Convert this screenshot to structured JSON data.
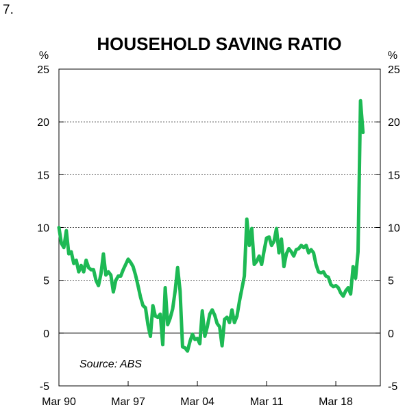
{
  "figure_number": "7.",
  "chart_data": {
    "type": "line",
    "title": "HOUSEHOLD SAVING RATIO",
    "unit_left": "%",
    "unit_right": "%",
    "source": "Source: ABS",
    "xlabel": "",
    "ylabel": "%",
    "ylim": [
      -5,
      25
    ],
    "yticks": [
      25,
      20,
      15,
      10,
      5,
      0,
      -5
    ],
    "y_tick_labels": [
      "25",
      "20",
      "15",
      "10",
      "5",
      "0",
      "-5"
    ],
    "gridlines": [
      20,
      15,
      10,
      5
    ],
    "zero_line": 0,
    "xlim": [
      1990.0,
      2022.5
    ],
    "x_ticks": [
      {
        "label": "Mar 90",
        "value": 1990.0
      },
      {
        "label": "Mar 97",
        "value": 1997.0
      },
      {
        "label": "Mar 04",
        "value": 2004.0
      },
      {
        "label": "Mar 11",
        "value": 2011.0
      },
      {
        "label": "Mar 18",
        "value": 2018.0
      }
    ],
    "line_color": "#1db954",
    "series": [
      {
        "name": "Household saving ratio",
        "points": [
          [
            1990.0,
            10.0
          ],
          [
            1990.25,
            8.5
          ],
          [
            1990.5,
            8.1
          ],
          [
            1990.75,
            9.7
          ],
          [
            1991.0,
            7.5
          ],
          [
            1991.25,
            7.7
          ],
          [
            1991.5,
            6.6
          ],
          [
            1991.75,
            6.9
          ],
          [
            1992.0,
            5.8
          ],
          [
            1992.25,
            6.4
          ],
          [
            1992.5,
            5.8
          ],
          [
            1992.75,
            6.9
          ],
          [
            1993.0,
            6.2
          ],
          [
            1993.25,
            6.0
          ],
          [
            1993.5,
            6.0
          ],
          [
            1993.75,
            5.0
          ],
          [
            1994.0,
            4.5
          ],
          [
            1994.25,
            5.6
          ],
          [
            1994.5,
            7.5
          ],
          [
            1994.75,
            5.5
          ],
          [
            1995.0,
            5.8
          ],
          [
            1995.25,
            5.5
          ],
          [
            1995.5,
            3.9
          ],
          [
            1995.75,
            5.0
          ],
          [
            1996.0,
            5.4
          ],
          [
            1996.25,
            5.4
          ],
          [
            1996.5,
            6.0
          ],
          [
            1996.75,
            6.5
          ],
          [
            1997.0,
            7.0
          ],
          [
            1997.25,
            6.7
          ],
          [
            1997.5,
            6.3
          ],
          [
            1997.75,
            5.5
          ],
          [
            1998.0,
            4.5
          ],
          [
            1998.25,
            3.4
          ],
          [
            1998.5,
            2.6
          ],
          [
            1998.75,
            2.4
          ],
          [
            1999.0,
            0.8
          ],
          [
            1999.25,
            -0.3
          ],
          [
            1999.5,
            2.6
          ],
          [
            1999.75,
            1.6
          ],
          [
            2000.0,
            1.5
          ],
          [
            2000.25,
            1.8
          ],
          [
            2000.5,
            -1.1
          ],
          [
            2000.75,
            4.3
          ],
          [
            2001.0,
            0.8
          ],
          [
            2001.25,
            1.4
          ],
          [
            2001.5,
            2.3
          ],
          [
            2001.75,
            4.0
          ],
          [
            2002.0,
            6.2
          ],
          [
            2002.25,
            4.0
          ],
          [
            2002.5,
            -1.3
          ],
          [
            2002.75,
            -1.4
          ],
          [
            2003.0,
            -1.7
          ],
          [
            2003.25,
            -0.8
          ],
          [
            2003.5,
            -0.1
          ],
          [
            2003.75,
            -0.6
          ],
          [
            2004.0,
            -0.5
          ],
          [
            2004.25,
            -1.0
          ],
          [
            2004.5,
            2.1
          ],
          [
            2004.75,
            -0.3
          ],
          [
            2005.0,
            0.6
          ],
          [
            2005.25,
            1.8
          ],
          [
            2005.5,
            2.2
          ],
          [
            2005.75,
            1.7
          ],
          [
            2006.0,
            0.9
          ],
          [
            2006.25,
            0.6
          ],
          [
            2006.5,
            -1.2
          ],
          [
            2006.75,
            1.3
          ],
          [
            2007.0,
            1.5
          ],
          [
            2007.25,
            1.0
          ],
          [
            2007.5,
            2.2
          ],
          [
            2007.75,
            1.0
          ],
          [
            2008.0,
            1.6
          ],
          [
            2008.25,
            3.0
          ],
          [
            2008.5,
            4.2
          ],
          [
            2008.75,
            5.4
          ],
          [
            2009.0,
            10.8
          ],
          [
            2009.25,
            8.3
          ],
          [
            2009.5,
            9.9
          ],
          [
            2009.75,
            6.5
          ],
          [
            2010.0,
            6.8
          ],
          [
            2010.25,
            7.3
          ],
          [
            2010.5,
            6.5
          ],
          [
            2010.75,
            7.8
          ],
          [
            2011.0,
            9.0
          ],
          [
            2011.25,
            9.1
          ],
          [
            2011.5,
            8.3
          ],
          [
            2011.75,
            8.7
          ],
          [
            2012.0,
            9.9
          ],
          [
            2012.25,
            7.6
          ],
          [
            2012.5,
            8.9
          ],
          [
            2012.75,
            6.3
          ],
          [
            2013.0,
            7.5
          ],
          [
            2013.25,
            8.0
          ],
          [
            2013.5,
            7.7
          ],
          [
            2013.75,
            7.3
          ],
          [
            2014.0,
            7.9
          ],
          [
            2014.25,
            8.0
          ],
          [
            2014.5,
            8.3
          ],
          [
            2014.75,
            8.1
          ],
          [
            2015.0,
            8.3
          ],
          [
            2015.25,
            7.6
          ],
          [
            2015.5,
            7.9
          ],
          [
            2015.75,
            7.6
          ],
          [
            2016.0,
            6.5
          ],
          [
            2016.25,
            5.8
          ],
          [
            2016.5,
            5.7
          ],
          [
            2016.75,
            5.8
          ],
          [
            2017.0,
            5.4
          ],
          [
            2017.25,
            5.3
          ],
          [
            2017.5,
            4.6
          ],
          [
            2017.75,
            4.4
          ],
          [
            2018.0,
            4.5
          ],
          [
            2018.25,
            4.3
          ],
          [
            2018.5,
            3.8
          ],
          [
            2018.75,
            3.5
          ],
          [
            2019.0,
            4.0
          ],
          [
            2019.25,
            4.3
          ],
          [
            2019.5,
            3.7
          ],
          [
            2019.75,
            6.3
          ],
          [
            2020.0,
            5.2
          ],
          [
            2020.25,
            7.7
          ],
          [
            2020.5,
            22.0
          ],
          [
            2020.75,
            19.0
          ]
        ]
      }
    ]
  }
}
